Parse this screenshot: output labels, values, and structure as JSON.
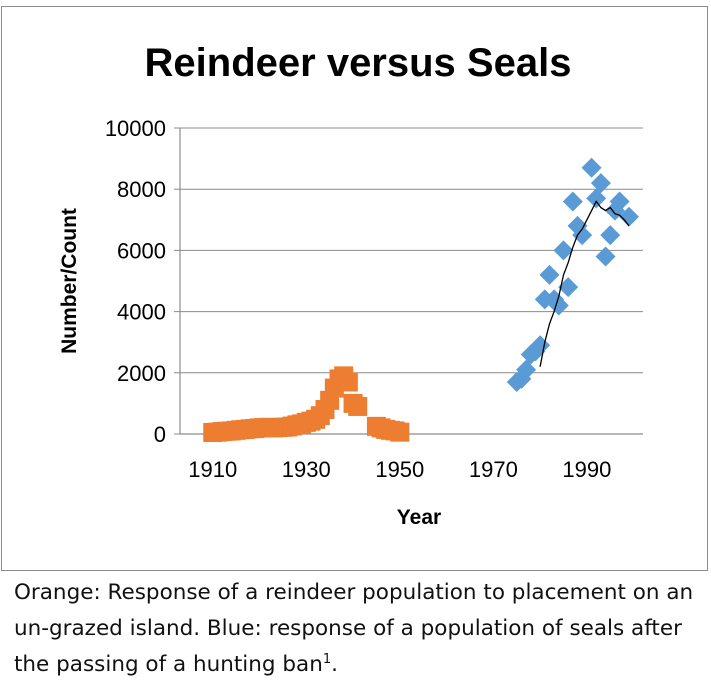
{
  "chart_data": {
    "type": "scatter",
    "title": "Reindeer versus Seals",
    "xlabel": "Year",
    "ylabel": "Number/Count",
    "xlim": [
      1903,
      2002
    ],
    "ylim": [
      0,
      10000
    ],
    "x_ticks": [
      1910,
      1930,
      1950,
      1970,
      1990
    ],
    "y_ticks": [
      0,
      2000,
      4000,
      6000,
      8000,
      10000
    ],
    "grid": "horizontal",
    "series": [
      {
        "color": "#ed7d31",
        "marker": "square",
        "points": [
          [
            1910,
            50
          ],
          [
            1911,
            60
          ],
          [
            1912,
            80
          ],
          [
            1913,
            90
          ],
          [
            1914,
            100
          ],
          [
            1915,
            120
          ],
          [
            1916,
            140
          ],
          [
            1917,
            150
          ],
          [
            1918,
            170
          ],
          [
            1919,
            180
          ],
          [
            1920,
            200
          ],
          [
            1921,
            210
          ],
          [
            1922,
            220
          ],
          [
            1923,
            200
          ],
          [
            1924,
            210
          ],
          [
            1925,
            220
          ],
          [
            1926,
            230
          ],
          [
            1927,
            260
          ],
          [
            1928,
            300
          ],
          [
            1929,
            330
          ],
          [
            1930,
            380
          ],
          [
            1931,
            420
          ],
          [
            1932,
            480
          ],
          [
            1933,
            600
          ],
          [
            1934,
            800
          ],
          [
            1935,
            1100
          ],
          [
            1936,
            1500
          ],
          [
            1937,
            1800
          ],
          [
            1938,
            1900
          ],
          [
            1939,
            1700
          ],
          [
            1940,
            1000
          ],
          [
            1941,
            900
          ],
          [
            1945,
            250
          ],
          [
            1946,
            200
          ],
          [
            1947,
            150
          ],
          [
            1948,
            120
          ],
          [
            1949,
            100
          ],
          [
            1950,
            60
          ]
        ]
      },
      {
        "color": "#5b9bd5",
        "marker": "diamond",
        "points": [
          [
            1975,
            1700
          ],
          [
            1976,
            1800
          ],
          [
            1977,
            2100
          ],
          [
            1978,
            2600
          ],
          [
            1979,
            2700
          ],
          [
            1980,
            2900
          ],
          [
            1981,
            4400
          ],
          [
            1982,
            5200
          ],
          [
            1983,
            4400
          ],
          [
            1984,
            4200
          ],
          [
            1985,
            6000
          ],
          [
            1986,
            4800
          ],
          [
            1987,
            7600
          ],
          [
            1988,
            6800
          ],
          [
            1989,
            6500
          ],
          [
            1991,
            8700
          ],
          [
            1992,
            7700
          ],
          [
            1993,
            8200
          ],
          [
            1994,
            5800
          ],
          [
            1995,
            6500
          ],
          [
            1996,
            7300
          ],
          [
            1997,
            7600
          ],
          [
            1999,
            7100
          ]
        ],
        "trendline": [
          [
            1980,
            2200
          ],
          [
            1981,
            3000
          ],
          [
            1982,
            3600
          ],
          [
            1983,
            4000
          ],
          [
            1984,
            4500
          ],
          [
            1985,
            5200
          ],
          [
            1986,
            5600
          ],
          [
            1987,
            6100
          ],
          [
            1988,
            6500
          ],
          [
            1989,
            6700
          ],
          [
            1990,
            7000
          ],
          [
            1991,
            7300
          ],
          [
            1992,
            7600
          ],
          [
            1993,
            7400
          ],
          [
            1994,
            7300
          ],
          [
            1995,
            7400
          ],
          [
            1996,
            7200
          ],
          [
            1997,
            7150
          ],
          [
            1998,
            7000
          ],
          [
            1999,
            6800
          ]
        ]
      }
    ]
  },
  "caption": {
    "text": "Orange: Response of a reindeer population to placement on an un-grazed island. Blue: response of a population of seals after the passing of a hunting ban",
    "footnote": "1",
    "end": "."
  }
}
